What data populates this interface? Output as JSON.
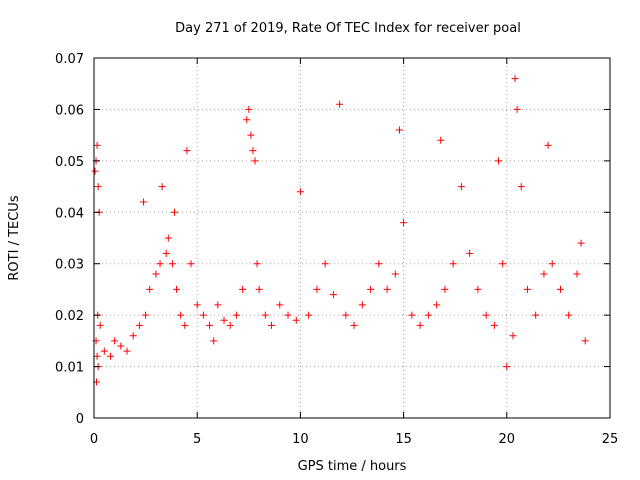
{
  "chart_data": {
    "type": "scatter",
    "title": "Day 271 of 2019, Rate Of TEC Index for receiver poal",
    "xlabel": "GPS time / hours",
    "ylabel": "ROTI / TECUs",
    "xlim": [
      0,
      25
    ],
    "ylim": [
      0,
      0.07
    ],
    "xticks": [
      "0",
      "5",
      "10",
      "15",
      "20",
      "25"
    ],
    "yticks": [
      "0",
      "0.01",
      "0.02",
      "0.03",
      "0.04",
      "0.05",
      "0.06",
      "0.07"
    ],
    "grid": true,
    "marker": "plus",
    "color": "#ff0000",
    "series": [
      {
        "x": [
          0.05,
          0.1,
          0.15,
          0.2,
          0.25,
          0.1,
          0.15,
          0.2,
          0.12,
          0.18,
          0.3,
          0.5,
          0.8,
          1.0,
          1.3,
          1.6,
          1.9,
          2.2,
          2.4,
          2.5,
          2.7,
          3.0,
          3.2,
          3.3,
          3.5,
          3.6,
          3.8,
          3.9,
          4.0,
          4.2,
          4.4,
          4.5,
          4.7,
          5.0,
          5.3,
          5.6,
          5.8,
          6.0,
          6.3,
          6.6,
          6.9,
          7.2,
          7.4,
          7.5,
          7.6,
          7.7,
          7.8,
          7.9,
          8.0,
          8.3,
          8.6,
          9.0,
          9.4,
          9.8,
          10.0,
          10.4,
          10.8,
          11.2,
          11.6,
          11.9,
          12.2,
          12.6,
          13.0,
          13.4,
          13.8,
          14.2,
          14.6,
          14.8,
          15.0,
          15.4,
          15.8,
          16.2,
          16.6,
          16.8,
          17.0,
          17.4,
          17.8,
          18.2,
          18.6,
          19.0,
          19.4,
          19.6,
          19.8,
          20.0,
          20.3,
          20.4,
          20.5,
          20.7,
          21.0,
          21.4,
          21.8,
          22.0,
          22.2,
          22.6,
          23.0,
          23.4,
          23.6,
          23.8
        ],
        "y": [
          0.048,
          0.05,
          0.053,
          0.045,
          0.04,
          0.015,
          0.012,
          0.01,
          0.007,
          0.02,
          0.018,
          0.013,
          0.012,
          0.015,
          0.014,
          0.013,
          0.016,
          0.018,
          0.042,
          0.02,
          0.025,
          0.028,
          0.03,
          0.045,
          0.032,
          0.035,
          0.03,
          0.04,
          0.025,
          0.02,
          0.018,
          0.052,
          0.03,
          0.022,
          0.02,
          0.018,
          0.015,
          0.022,
          0.019,
          0.018,
          0.02,
          0.025,
          0.058,
          0.06,
          0.055,
          0.052,
          0.05,
          0.03,
          0.025,
          0.02,
          0.018,
          0.022,
          0.02,
          0.019,
          0.044,
          0.02,
          0.025,
          0.03,
          0.024,
          0.061,
          0.02,
          0.018,
          0.022,
          0.025,
          0.03,
          0.025,
          0.028,
          0.056,
          0.038,
          0.02,
          0.018,
          0.02,
          0.022,
          0.054,
          0.025,
          0.03,
          0.045,
          0.032,
          0.025,
          0.02,
          0.018,
          0.05,
          0.03,
          0.01,
          0.016,
          0.066,
          0.06,
          0.045,
          0.025,
          0.02,
          0.028,
          0.053,
          0.03,
          0.025,
          0.02,
          0.028,
          0.034,
          0.015
        ]
      }
    ]
  }
}
